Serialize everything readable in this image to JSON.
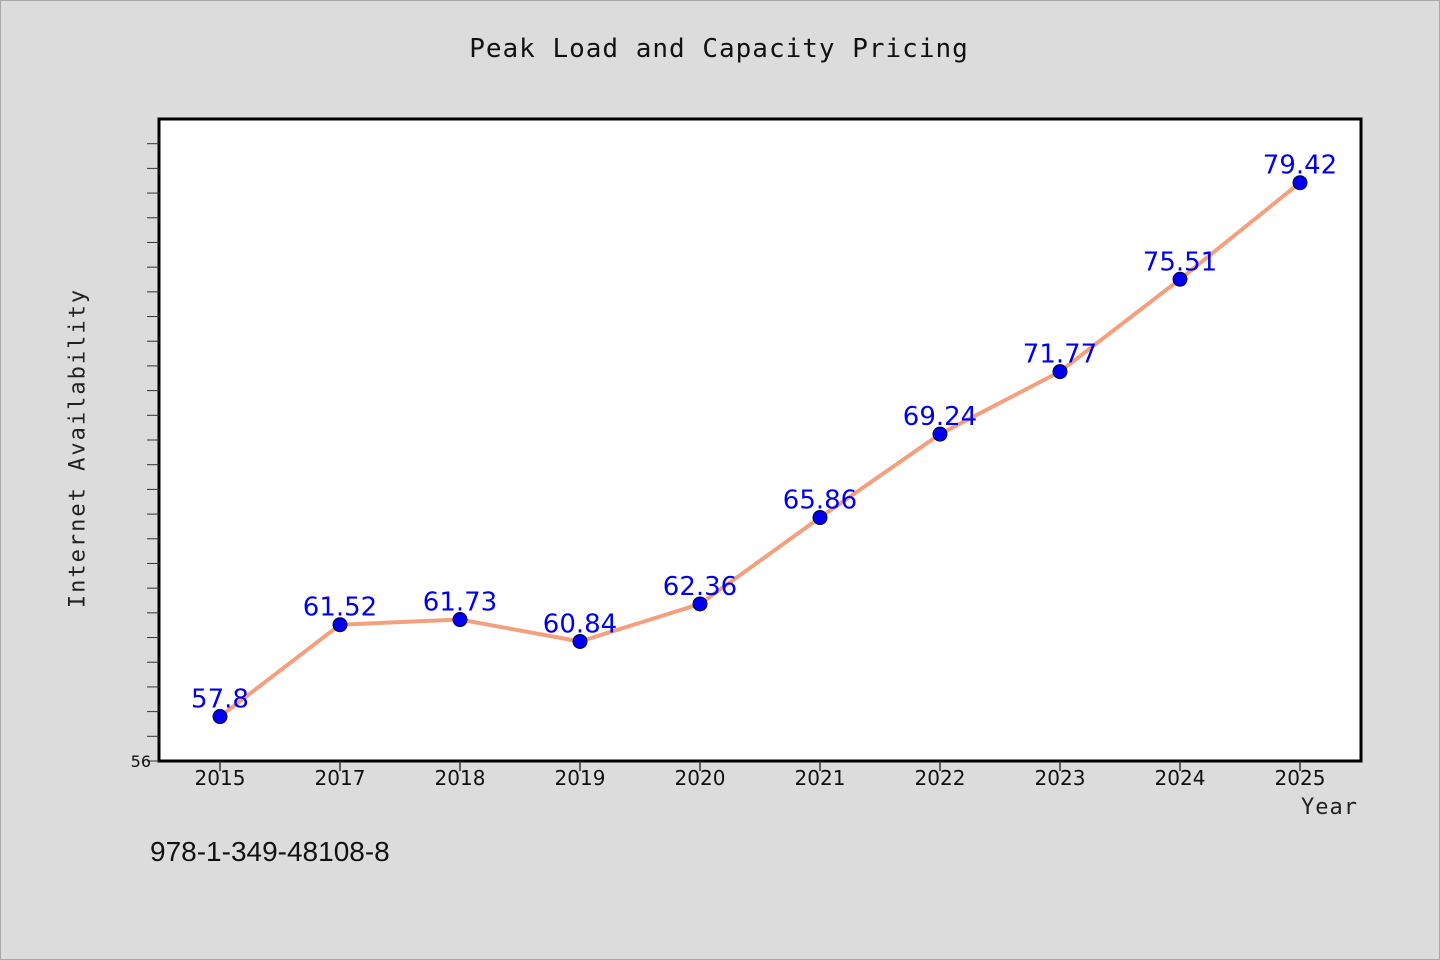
{
  "chart_data": {
    "type": "line",
    "title": "Peak Load and Capacity Pricing",
    "xlabel": "Year",
    "ylabel": "Internet Availability",
    "x": [
      "2015",
      "2017",
      "2018",
      "2019",
      "2020",
      "2021",
      "2022",
      "2023",
      "2024",
      "2025"
    ],
    "series": [
      {
        "values": [
          57.8,
          61.52,
          61.73,
          60.84,
          62.36,
          65.86,
          69.24,
          71.77,
          75.51,
          79.42
        ],
        "labels": [
          "57.8",
          "61.52",
          "61.73",
          "60.84",
          "62.36",
          "65.86",
          "69.24",
          "71.77",
          "75.51",
          "79.42"
        ],
        "line_color": "#f4a07e",
        "marker_color": "#0000ee",
        "label_color": "#0000ee"
      }
    ],
    "ylim": [
      56,
      82
    ],
    "y_tick_labels": [
      "56"
    ],
    "grid": false,
    "legend": "none"
  },
  "footer": {
    "code": "978-1-349-48108-8"
  },
  "colors": {
    "background": "#dcdcdc",
    "plot_background": "#ffffff",
    "axis": "#000000"
  }
}
